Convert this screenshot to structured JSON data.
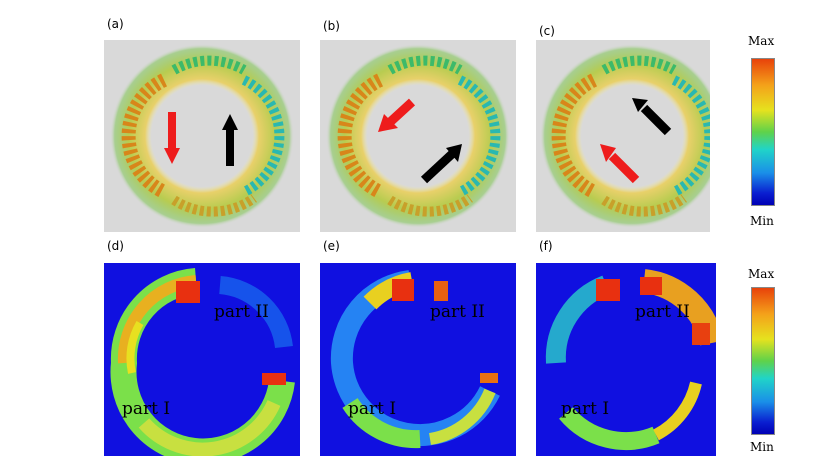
{
  "panels": {
    "a": {
      "label": "(a)"
    },
    "b": {
      "label": "(b)"
    },
    "c": {
      "label": "(c)"
    },
    "d": {
      "label": "(d)",
      "part1": "part I",
      "part2": "part II"
    },
    "e": {
      "label": "(e)",
      "part1": "part I",
      "part2": "part II"
    },
    "f": {
      "label": "(f)",
      "part1": "part I",
      "part2": "part II"
    }
  },
  "colorbar_top": {
    "max": "Max",
    "min": "Min"
  },
  "colorbar_bottom": {
    "max": "Max",
    "min": "Min"
  },
  "colors": {
    "arrow_red": "#ee1c1c",
    "arrow_black": "#000000",
    "field_bg": "#1010e0",
    "vector_bg": "#d9d9d9"
  }
}
